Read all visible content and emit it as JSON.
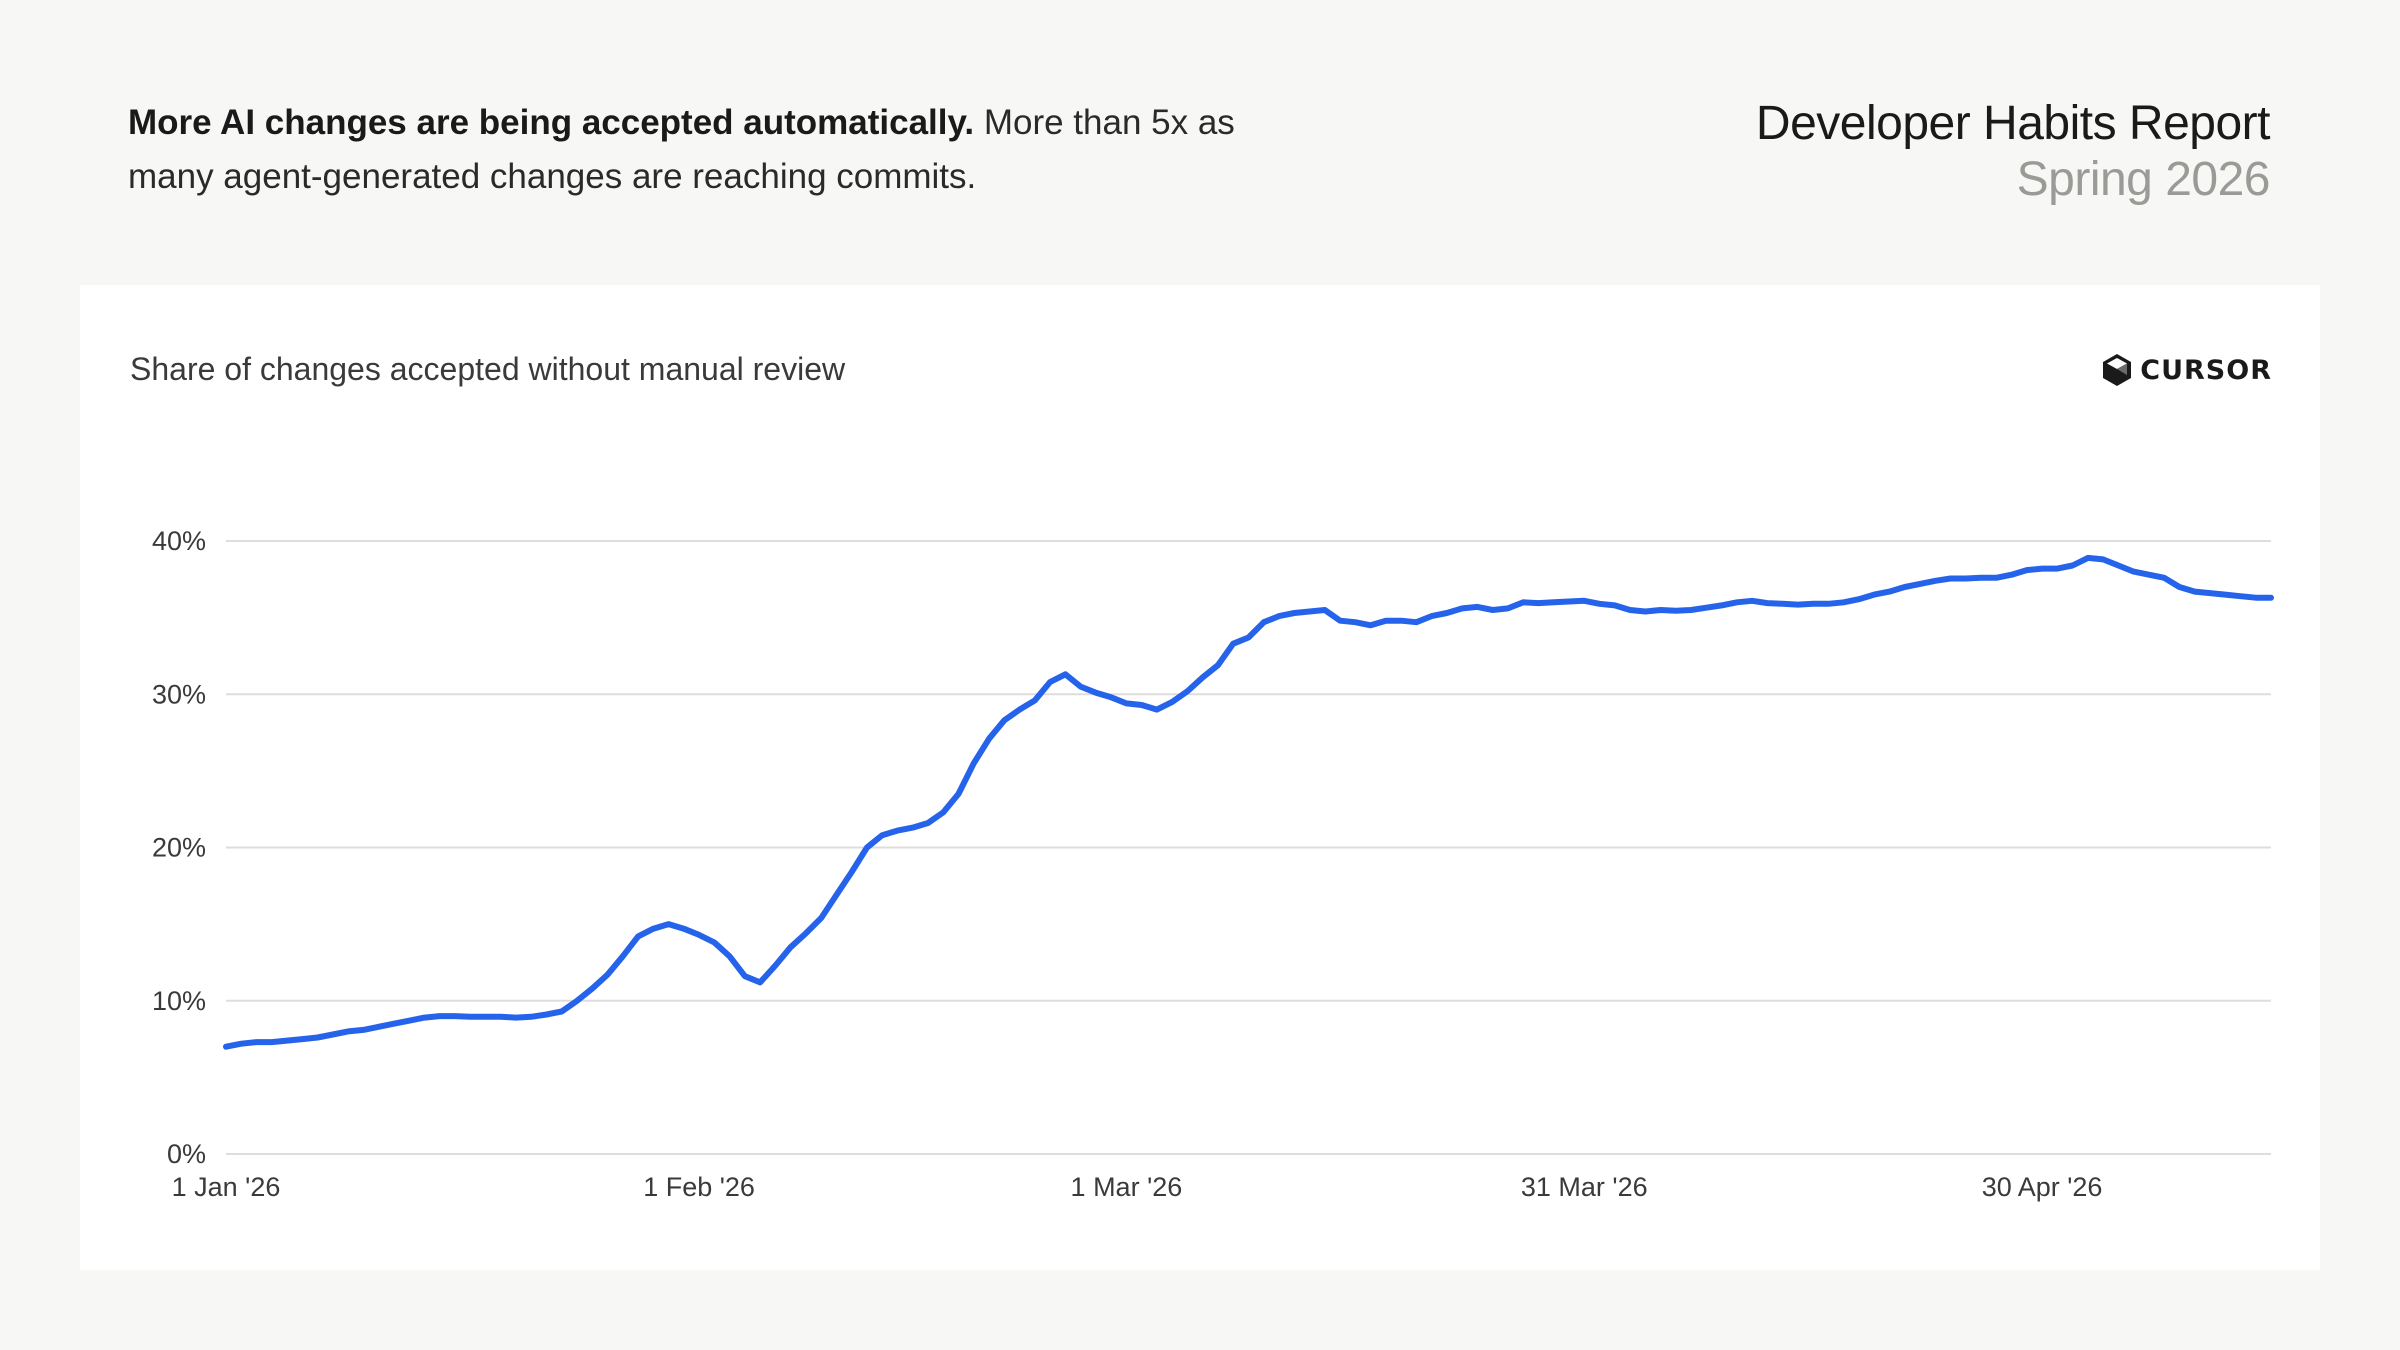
{
  "header": {
    "headline_bold": "More AI changes are being accepted automatically.",
    "headline_rest": " More than 5x as many agent-generated changes are reaching commits.",
    "report_title": "Developer Habits Report",
    "report_subtitle": "Spring 2026"
  },
  "card": {
    "title": "Share of changes accepted without manual review",
    "logo_text": "CURSOR",
    "logo_icon": "cube-icon"
  },
  "colors": {
    "line": "#2563eb",
    "grid": "#dddddd",
    "background": "#f7f7f5",
    "card": "#ffffff"
  },
  "chart_data": {
    "type": "line",
    "title": "Share of changes accepted without manual review",
    "xlabel": "",
    "ylabel": "",
    "ylim": [
      0,
      40
    ],
    "y_ticks": [
      0,
      10,
      20,
      30,
      40
    ],
    "y_tick_labels": [
      "0%",
      "10%",
      "20%",
      "30%",
      "40%"
    ],
    "x_ticks": [
      "2026-01-01",
      "2026-02-01",
      "2026-03-01",
      "2026-03-31",
      "2026-04-30"
    ],
    "x_tick_labels": [
      "1 Jan '26",
      "1 Feb '26",
      "1 Mar '26",
      "31 Mar '26",
      "30 Apr '26"
    ],
    "xlim": [
      "2026-01-01",
      "2026-05-15"
    ],
    "grid": true,
    "series": [
      {
        "x": [
          "2026-01-01",
          "2026-01-02",
          "2026-01-03",
          "2026-01-04",
          "2026-01-05",
          "2026-01-06",
          "2026-01-07",
          "2026-01-08",
          "2026-01-09",
          "2026-01-10",
          "2026-01-11",
          "2026-01-12",
          "2026-01-13",
          "2026-01-14",
          "2026-01-15",
          "2026-01-16",
          "2026-01-17",
          "2026-01-18",
          "2026-01-19",
          "2026-01-20",
          "2026-01-21",
          "2026-01-22",
          "2026-01-23",
          "2026-01-24",
          "2026-01-25",
          "2026-01-26",
          "2026-01-27",
          "2026-01-28",
          "2026-01-29",
          "2026-01-30",
          "2026-01-31",
          "2026-02-01",
          "2026-02-02",
          "2026-02-03",
          "2026-02-04",
          "2026-02-05",
          "2026-02-06",
          "2026-02-07",
          "2026-02-08",
          "2026-02-09",
          "2026-02-10",
          "2026-02-11",
          "2026-02-12",
          "2026-02-13",
          "2026-02-14",
          "2026-02-15",
          "2026-02-16",
          "2026-02-17",
          "2026-02-18",
          "2026-02-19",
          "2026-02-20",
          "2026-02-21",
          "2026-02-22",
          "2026-02-23",
          "2026-02-24",
          "2026-02-25",
          "2026-02-26",
          "2026-02-27",
          "2026-02-28",
          "2026-03-01",
          "2026-03-02",
          "2026-03-03",
          "2026-03-04",
          "2026-03-05",
          "2026-03-06",
          "2026-03-07",
          "2026-03-08",
          "2026-03-09",
          "2026-03-10",
          "2026-03-11",
          "2026-03-12",
          "2026-03-13",
          "2026-03-14",
          "2026-03-15",
          "2026-03-16",
          "2026-03-17",
          "2026-03-18",
          "2026-03-19",
          "2026-03-20",
          "2026-03-21",
          "2026-03-22",
          "2026-03-23",
          "2026-03-24",
          "2026-03-25",
          "2026-03-26",
          "2026-03-27",
          "2026-03-28",
          "2026-03-29",
          "2026-03-30",
          "2026-03-31",
          "2026-04-01",
          "2026-04-02",
          "2026-04-03",
          "2026-04-04",
          "2026-04-05",
          "2026-04-06",
          "2026-04-07",
          "2026-04-08",
          "2026-04-09",
          "2026-04-10",
          "2026-04-11",
          "2026-04-12",
          "2026-04-13",
          "2026-04-14",
          "2026-04-15",
          "2026-04-16",
          "2026-04-17",
          "2026-04-18",
          "2026-04-19",
          "2026-04-20",
          "2026-04-21",
          "2026-04-22",
          "2026-04-23",
          "2026-04-24",
          "2026-04-25",
          "2026-04-26",
          "2026-04-27",
          "2026-04-28",
          "2026-04-29",
          "2026-04-30",
          "2026-05-01",
          "2026-05-02",
          "2026-05-03",
          "2026-05-04",
          "2026-05-05",
          "2026-05-06",
          "2026-05-07",
          "2026-05-08",
          "2026-05-09",
          "2026-05-10",
          "2026-05-11",
          "2026-05-12",
          "2026-05-13",
          "2026-05-14",
          "2026-05-15"
        ],
        "values": [
          7.0,
          7.2,
          7.3,
          7.3,
          7.4,
          7.5,
          7.6,
          7.8,
          8.0,
          8.1,
          8.3,
          8.5,
          8.7,
          8.9,
          9.0,
          9.0,
          8.95,
          8.95,
          8.95,
          8.9,
          8.95,
          9.1,
          9.3,
          10.0,
          10.8,
          11.7,
          12.9,
          14.2,
          14.7,
          15.0,
          14.7,
          14.3,
          13.8,
          12.9,
          11.6,
          11.2,
          12.3,
          13.5,
          14.4,
          15.4,
          16.9,
          18.4,
          20.0,
          20.8,
          21.1,
          21.3,
          21.6,
          22.3,
          23.5,
          25.5,
          27.1,
          28.3,
          29.0,
          29.6,
          30.8,
          31.3,
          30.5,
          30.1,
          29.8,
          29.4,
          29.3,
          29.0,
          29.5,
          30.2,
          31.1,
          31.9,
          33.3,
          33.7,
          34.7,
          35.1,
          35.3,
          35.4,
          35.5,
          34.8,
          34.7,
          34.5,
          34.8,
          34.8,
          34.7,
          35.1,
          35.3,
          35.6,
          35.7,
          35.5,
          35.6,
          36.0,
          35.95,
          36.0,
          36.05,
          36.1,
          35.9,
          35.8,
          35.5,
          35.4,
          35.5,
          35.45,
          35.5,
          35.65,
          35.8,
          36.0,
          36.1,
          35.95,
          35.9,
          35.85,
          35.9,
          35.9,
          36.0,
          36.2,
          36.5,
          36.7,
          37.0,
          37.2,
          37.4,
          37.55,
          37.55,
          37.6,
          37.6,
          37.8,
          38.1,
          38.2,
          38.2,
          38.4,
          38.9,
          38.8,
          38.4,
          38.0,
          37.8,
          37.6,
          37.0,
          36.7,
          36.6,
          36.5,
          36.4,
          36.3,
          36.3
        ]
      }
    ]
  }
}
